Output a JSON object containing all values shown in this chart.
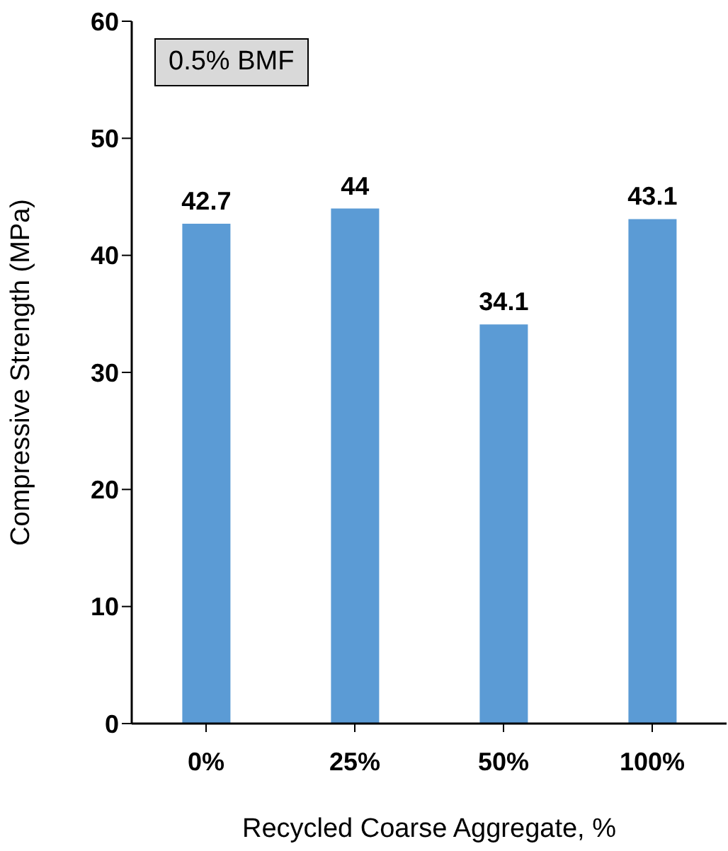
{
  "chart_data": {
    "type": "bar",
    "xlabel": "Recycled Coarse Aggregate, %",
    "ylabel": "Compressive Strength (MPa)",
    "categories": [
      "0%",
      "25%",
      "50%",
      "100%"
    ],
    "values": [
      42.7,
      44,
      34.1,
      43.1
    ],
    "color": "#5b9bd5",
    "ylim": [
      0,
      60
    ],
    "yticks": [
      0,
      10,
      20,
      30,
      40,
      50,
      60
    ],
    "grid": false,
    "data_labels": true,
    "annotations": [
      "0.5% BMF"
    ]
  }
}
